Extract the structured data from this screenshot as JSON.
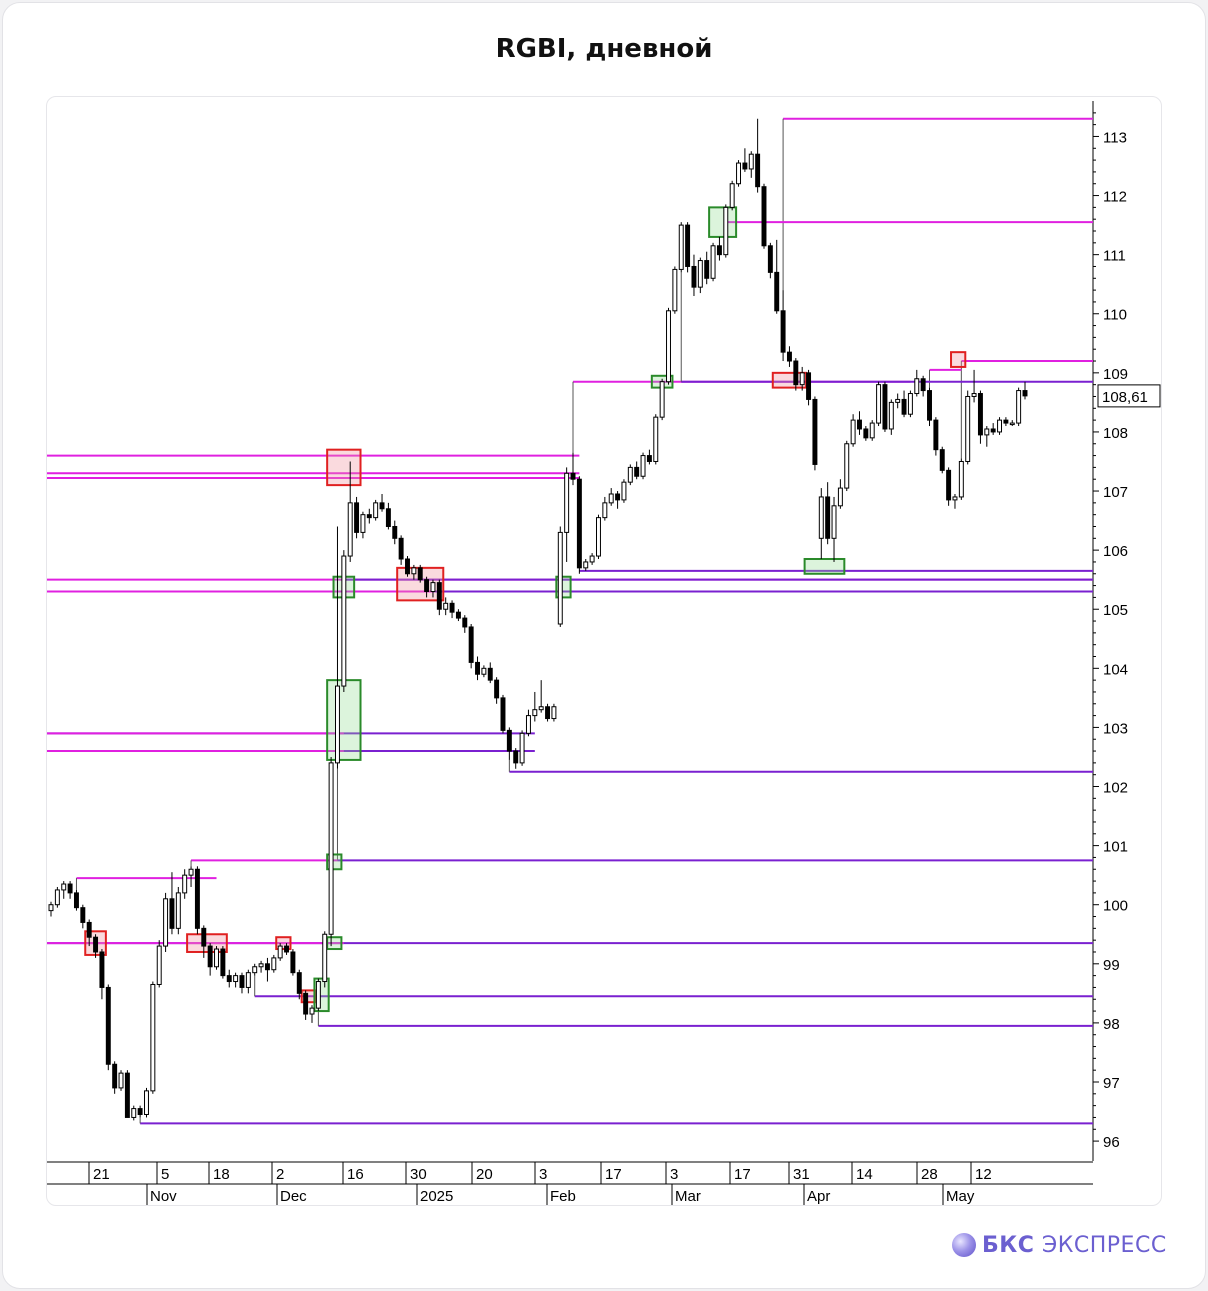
{
  "title": "RGBI, дневной",
  "brand": {
    "bold": "БКС",
    "rest": " ЭКСПРЕСС"
  },
  "colors": {
    "magenta": "#e020e0",
    "purple": "#7a20d0",
    "up": "#ffffff",
    "down": "#000000",
    "green_box": "#2a8a2a",
    "red_box": "#e02020"
  },
  "chart_data": {
    "type": "candlestick",
    "title": "RGBI, дневной",
    "ylim": [
      95.9,
      113.6
    ],
    "y_ticks": [
      96,
      97,
      98,
      99,
      100,
      101,
      102,
      103,
      104,
      105,
      106,
      107,
      108,
      109,
      110,
      111,
      112,
      113
    ],
    "y_tick_labels": [
      "96",
      "97",
      "98",
      "99",
      "100",
      "101",
      "102",
      "103",
      "104",
      "105",
      "106",
      "107",
      "108",
      "109",
      "110",
      "111",
      "112",
      "113"
    ],
    "last_price_label": "108,61",
    "last_price": 108.61,
    "x_day_labels": [
      "21",
      "5",
      "18",
      "2",
      "16",
      "30",
      "20",
      "3",
      "17",
      "3",
      "17",
      "31",
      "14",
      "28",
      "12"
    ],
    "x_month_labels": [
      "Nov",
      "Dec",
      "2025",
      "Feb",
      "Mar",
      "Apr",
      "May"
    ],
    "candles_ohlc": [
      [
        99.9,
        100.05,
        99.8,
        100.0
      ],
      [
        100.0,
        100.3,
        99.95,
        100.25
      ],
      [
        100.25,
        100.4,
        100.1,
        100.35
      ],
      [
        100.35,
        100.4,
        100.1,
        100.2
      ],
      [
        100.2,
        100.25,
        99.9,
        99.95
      ],
      [
        99.95,
        100.0,
        99.6,
        99.7
      ],
      [
        99.7,
        99.75,
        99.3,
        99.45
      ],
      [
        99.45,
        99.5,
        99.1,
        99.2
      ],
      [
        99.2,
        99.25,
        98.4,
        98.6
      ],
      [
        98.6,
        98.65,
        97.2,
        97.3
      ],
      [
        97.3,
        97.35,
        96.8,
        96.9
      ],
      [
        96.9,
        97.2,
        96.85,
        97.15
      ],
      [
        97.15,
        97.2,
        96.4,
        96.4
      ],
      [
        96.4,
        96.6,
        96.35,
        96.55
      ],
      [
        96.55,
        96.6,
        96.4,
        96.45
      ],
      [
        96.45,
        96.9,
        96.4,
        96.85
      ],
      [
        96.85,
        98.7,
        96.8,
        98.65
      ],
      [
        98.65,
        99.4,
        98.6,
        99.3
      ],
      [
        99.3,
        100.2,
        99.2,
        100.1
      ],
      [
        100.1,
        100.55,
        99.5,
        99.6
      ],
      [
        99.6,
        100.3,
        99.5,
        100.2
      ],
      [
        100.2,
        100.6,
        100.1,
        100.5
      ],
      [
        100.5,
        100.65,
        100.3,
        100.6
      ],
      [
        100.6,
        100.65,
        99.5,
        99.6
      ],
      [
        99.6,
        99.65,
        99.1,
        99.3
      ],
      [
        99.3,
        99.35,
        98.8,
        98.95
      ],
      [
        98.95,
        99.3,
        98.9,
        99.25
      ],
      [
        99.25,
        99.3,
        98.75,
        98.8
      ],
      [
        98.8,
        98.9,
        98.6,
        98.7
      ],
      [
        98.7,
        98.85,
        98.6,
        98.8
      ],
      [
        98.8,
        98.85,
        98.5,
        98.6
      ],
      [
        98.6,
        98.9,
        98.5,
        98.85
      ],
      [
        98.85,
        99.0,
        98.8,
        98.95
      ],
      [
        98.95,
        99.05,
        98.85,
        99.0
      ],
      [
        99.0,
        99.1,
        98.7,
        98.9
      ],
      [
        98.9,
        99.15,
        98.85,
        99.1
      ],
      [
        99.1,
        99.35,
        99.05,
        99.3
      ],
      [
        99.3,
        99.35,
        99.15,
        99.2
      ],
      [
        99.2,
        99.25,
        98.8,
        98.85
      ],
      [
        98.85,
        98.9,
        98.4,
        98.5
      ],
      [
        98.5,
        98.55,
        98.05,
        98.15
      ],
      [
        98.15,
        98.3,
        98.0,
        98.25
      ],
      [
        98.25,
        98.75,
        98.2,
        98.7
      ],
      [
        98.7,
        99.55,
        98.6,
        99.5
      ],
      [
        99.5,
        102.5,
        99.3,
        102.4
      ],
      [
        102.4,
        106.4,
        102.3,
        103.7
      ],
      [
        103.7,
        106.0,
        103.6,
        105.9
      ],
      [
        105.9,
        107.5,
        105.8,
        106.8
      ],
      [
        106.8,
        106.9,
        106.2,
        106.3
      ],
      [
        106.3,
        106.65,
        106.2,
        106.6
      ],
      [
        106.6,
        106.7,
        106.45,
        106.55
      ],
      [
        106.55,
        106.85,
        106.5,
        106.8
      ],
      [
        106.8,
        106.95,
        106.65,
        106.7
      ],
      [
        106.7,
        106.8,
        106.35,
        106.4
      ],
      [
        106.4,
        106.5,
        106.1,
        106.2
      ],
      [
        106.2,
        106.25,
        105.75,
        105.85
      ],
      [
        105.85,
        105.9,
        105.55,
        105.6
      ],
      [
        105.6,
        105.75,
        105.5,
        105.7
      ],
      [
        105.7,
        105.75,
        105.45,
        105.5
      ],
      [
        105.5,
        105.55,
        105.2,
        105.3
      ],
      [
        105.3,
        105.5,
        105.2,
        105.45
      ],
      [
        105.45,
        105.5,
        104.9,
        105.0
      ],
      [
        105.0,
        105.2,
        104.9,
        105.1
      ],
      [
        105.1,
        105.15,
        104.85,
        104.95
      ],
      [
        104.95,
        105.0,
        104.8,
        104.85
      ],
      [
        104.85,
        104.9,
        104.6,
        104.7
      ],
      [
        104.7,
        104.75,
        104.0,
        104.1
      ],
      [
        104.1,
        104.2,
        103.8,
        103.9
      ],
      [
        103.9,
        104.05,
        103.85,
        104.0
      ],
      [
        104.0,
        104.1,
        103.75,
        103.8
      ],
      [
        103.8,
        103.85,
        103.4,
        103.5
      ],
      [
        103.5,
        103.55,
        102.9,
        102.95
      ],
      [
        102.95,
        103.0,
        102.45,
        102.6
      ],
      [
        102.6,
        102.65,
        102.3,
        102.4
      ],
      [
        102.4,
        102.95,
        102.35,
        102.9
      ],
      [
        102.9,
        103.3,
        102.85,
        103.2
      ],
      [
        103.2,
        103.6,
        103.1,
        103.3
      ],
      [
        103.3,
        103.8,
        103.25,
        103.35
      ],
      [
        103.35,
        103.4,
        103.1,
        103.15
      ],
      [
        103.15,
        103.4,
        103.1,
        103.35
      ],
      [
        104.75,
        106.4,
        104.7,
        106.3
      ],
      [
        106.3,
        107.4,
        105.8,
        107.3
      ],
      [
        107.3,
        107.65,
        107.1,
        107.2
      ],
      [
        107.2,
        107.25,
        105.6,
        105.7
      ],
      [
        105.7,
        105.85,
        105.65,
        105.8
      ],
      [
        105.8,
        105.95,
        105.75,
        105.9
      ],
      [
        105.9,
        106.6,
        105.85,
        106.55
      ],
      [
        106.55,
        106.9,
        106.5,
        106.8
      ],
      [
        106.8,
        107.05,
        106.75,
        106.95
      ],
      [
        106.95,
        107.0,
        106.7,
        106.85
      ],
      [
        106.85,
        107.2,
        106.8,
        107.15
      ],
      [
        107.15,
        107.45,
        107.1,
        107.4
      ],
      [
        107.4,
        107.5,
        107.2,
        107.25
      ],
      [
        107.25,
        107.65,
        107.2,
        107.6
      ],
      [
        107.6,
        107.7,
        107.45,
        107.5
      ],
      [
        107.5,
        108.3,
        107.45,
        108.25
      ],
      [
        108.25,
        108.9,
        108.2,
        108.85
      ],
      [
        108.85,
        110.1,
        108.8,
        110.05
      ],
      [
        110.05,
        110.8,
        110.0,
        110.75
      ],
      [
        110.75,
        111.55,
        110.7,
        111.5
      ],
      [
        111.5,
        111.55,
        110.7,
        110.8
      ],
      [
        110.8,
        111.0,
        110.3,
        110.45
      ],
      [
        110.45,
        110.95,
        110.35,
        110.9
      ],
      [
        110.9,
        111.05,
        110.5,
        110.6
      ],
      [
        110.6,
        111.2,
        110.55,
        111.15
      ],
      [
        111.15,
        111.3,
        110.9,
        111.0
      ],
      [
        111.0,
        111.85,
        110.95,
        111.8
      ],
      [
        111.8,
        112.25,
        111.75,
        112.2
      ],
      [
        112.2,
        112.6,
        112.15,
        112.55
      ],
      [
        112.55,
        112.8,
        112.4,
        112.45
      ],
      [
        112.45,
        112.75,
        112.3,
        112.7
      ],
      [
        112.7,
        113.3,
        112.05,
        112.15
      ],
      [
        112.15,
        112.2,
        111.1,
        111.15
      ],
      [
        111.15,
        111.2,
        110.6,
        110.7
      ],
      [
        110.7,
        111.25,
        110.0,
        110.05
      ],
      [
        110.05,
        110.4,
        109.2,
        109.35
      ],
      [
        109.35,
        109.45,
        109.1,
        109.2
      ],
      [
        109.2,
        109.25,
        108.7,
        108.8
      ],
      [
        108.8,
        109.1,
        108.7,
        109.0
      ],
      [
        109.0,
        109.05,
        108.45,
        108.55
      ],
      [
        108.55,
        108.6,
        107.35,
        107.45
      ],
      [
        106.2,
        107.05,
        105.85,
        106.9
      ],
      [
        106.9,
        107.15,
        106.1,
        106.2
      ],
      [
        106.2,
        106.9,
        105.8,
        106.75
      ],
      [
        106.75,
        107.2,
        106.7,
        107.05
      ],
      [
        107.05,
        107.85,
        107.0,
        107.8
      ],
      [
        107.8,
        108.3,
        107.75,
        108.2
      ],
      [
        108.2,
        108.35,
        107.95,
        108.05
      ],
      [
        108.05,
        108.1,
        107.85,
        107.9
      ],
      [
        107.9,
        108.2,
        107.85,
        108.15
      ],
      [
        108.15,
        108.85,
        108.1,
        108.8
      ],
      [
        108.8,
        108.85,
        108.0,
        108.05
      ],
      [
        108.05,
        108.55,
        107.95,
        108.5
      ],
      [
        108.5,
        108.65,
        108.4,
        108.55
      ],
      [
        108.55,
        108.7,
        108.25,
        108.3
      ],
      [
        108.3,
        108.7,
        108.25,
        108.65
      ],
      [
        108.65,
        109.05,
        108.6,
        108.9
      ],
      [
        108.9,
        108.95,
        108.6,
        108.7
      ],
      [
        108.7,
        108.75,
        108.1,
        108.2
      ],
      [
        108.2,
        108.25,
        107.6,
        107.7
      ],
      [
        107.7,
        107.75,
        107.3,
        107.35
      ],
      [
        107.35,
        107.4,
        106.75,
        106.85
      ],
      [
        106.85,
        106.95,
        106.7,
        106.9
      ],
      [
        106.9,
        107.55,
        106.85,
        107.5
      ],
      [
        107.5,
        108.7,
        107.45,
        108.6
      ],
      [
        108.6,
        109.05,
        108.5,
        108.65
      ],
      [
        108.65,
        108.7,
        107.8,
        107.95
      ],
      [
        107.95,
        108.1,
        107.75,
        108.05
      ],
      [
        108.05,
        108.15,
        107.95,
        108.0
      ],
      [
        108.0,
        108.25,
        107.95,
        108.2
      ],
      [
        108.2,
        108.25,
        108.1,
        108.15
      ],
      [
        108.15,
        108.2,
        108.1,
        108.15
      ],
      [
        108.15,
        108.75,
        108.1,
        108.7
      ],
      [
        108.7,
        108.85,
        108.55,
        108.61
      ]
    ],
    "levels": [
      {
        "color": "magenta",
        "price": 113.3,
        "from_candle": 115
      },
      {
        "color": "magenta",
        "price": 111.55,
        "from_candle": 106
      },
      {
        "color": "magenta",
        "price": 109.2,
        "from_candle": 143
      },
      {
        "color": "magenta",
        "price": 109.05,
        "from_candle": 138,
        "to_candle": 143
      },
      {
        "color": "magenta",
        "price": 108.85,
        "from_candle": 82,
        "to_candle": 135
      },
      {
        "color": "purple",
        "price": 108.85,
        "from_candle": 99
      },
      {
        "color": "magenta",
        "price": 107.6,
        "from_candle": 0,
        "to_candle": 83
      },
      {
        "color": "magenta",
        "price": 107.3,
        "from_candle": 0,
        "to_candle": 83
      },
      {
        "color": "magenta",
        "price": 107.22,
        "from_candle": 0,
        "to_candle": 83
      },
      {
        "color": "purple",
        "price": 105.65,
        "from_candle": 83
      },
      {
        "color": "magenta",
        "price": 105.5,
        "from_candle": 0
      },
      {
        "color": "purple",
        "price": 105.5,
        "from_candle": 46
      },
      {
        "color": "magenta",
        "price": 105.3,
        "from_candle": 0
      },
      {
        "color": "purple",
        "price": 105.3,
        "from_candle": 60
      },
      {
        "color": "purple",
        "price": 102.9,
        "from_candle": 0,
        "to_candle": 76
      },
      {
        "color": "magenta",
        "price": 102.9,
        "from_candle": 0,
        "to_candle": 46
      },
      {
        "color": "purple",
        "price": 102.6,
        "from_candle": 0,
        "to_candle": 76
      },
      {
        "color": "magenta",
        "price": 102.6,
        "from_candle": 0,
        "to_candle": 46
      },
      {
        "color": "purple",
        "price": 102.25,
        "from_candle": 72
      },
      {
        "color": "purple",
        "price": 100.75,
        "from_candle": 45
      },
      {
        "color": "magenta",
        "price": 100.75,
        "from_candle": 22,
        "to_candle": 45
      },
      {
        "color": "magenta",
        "price": 100.45,
        "from_candle": 4,
        "to_candle": 26
      },
      {
        "color": "purple",
        "price": 99.35,
        "from_candle": 0
      },
      {
        "color": "magenta",
        "price": 99.35,
        "from_candle": 0,
        "to_candle": 46
      },
      {
        "color": "purple",
        "price": 98.45,
        "from_candle": 32
      },
      {
        "color": "purple",
        "price": 97.95,
        "from_candle": 42
      },
      {
        "color": "purple",
        "price": 96.3,
        "from_candle": 14
      }
    ],
    "zones": [
      {
        "kind": "red",
        "candle_from": 6,
        "candle_to": 8,
        "price_lo": 99.15,
        "price_hi": 99.55
      },
      {
        "kind": "red",
        "candle_from": 22,
        "candle_to": 27,
        "price_lo": 99.2,
        "price_hi": 99.5
      },
      {
        "kind": "red",
        "candle_from": 36,
        "candle_to": 37,
        "price_lo": 99.25,
        "price_hi": 99.45
      },
      {
        "kind": "red",
        "candle_from": 40,
        "candle_to": 41,
        "price_lo": 98.35,
        "price_hi": 98.55
      },
      {
        "kind": "green",
        "candle_from": 42,
        "candle_to": 43,
        "price_lo": 98.2,
        "price_hi": 98.75
      },
      {
        "kind": "green",
        "candle_from": 44,
        "candle_to": 45,
        "price_lo": 99.25,
        "price_hi": 99.45
      },
      {
        "kind": "green",
        "candle_from": 44,
        "candle_to": 45,
        "price_lo": 100.6,
        "price_hi": 100.85
      },
      {
        "kind": "green",
        "candle_from": 44,
        "candle_to": 48,
        "price_lo": 102.45,
        "price_hi": 103.8
      },
      {
        "kind": "green",
        "candle_from": 45,
        "candle_to": 47,
        "price_lo": 105.2,
        "price_hi": 105.55
      },
      {
        "kind": "red",
        "candle_from": 44,
        "candle_to": 48,
        "price_lo": 107.1,
        "price_hi": 107.7
      },
      {
        "kind": "red",
        "candle_from": 55,
        "candle_to": 61,
        "price_lo": 105.15,
        "price_hi": 105.7
      },
      {
        "kind": "green",
        "candle_from": 80,
        "candle_to": 81,
        "price_lo": 105.2,
        "price_hi": 105.55
      },
      {
        "kind": "green",
        "candle_from": 95,
        "candle_to": 97,
        "price_lo": 108.75,
        "price_hi": 108.95
      },
      {
        "kind": "green",
        "candle_from": 104,
        "candle_to": 107,
        "price_lo": 111.3,
        "price_hi": 111.8
      },
      {
        "kind": "red",
        "candle_from": 114,
        "candle_to": 118,
        "price_lo": 108.75,
        "price_hi": 109.0
      },
      {
        "kind": "green",
        "candle_from": 119,
        "candle_to": 124,
        "price_lo": 105.6,
        "price_hi": 105.85
      },
      {
        "kind": "red",
        "candle_from": 142,
        "candle_to": 143,
        "price_lo": 109.1,
        "price_hi": 109.35
      }
    ]
  }
}
